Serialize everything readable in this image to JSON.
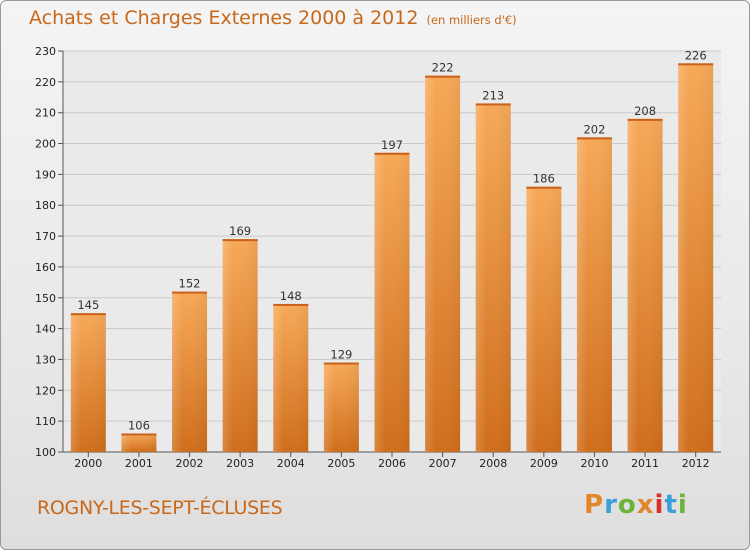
{
  "header": {
    "title": "Achats et Charges Externes 2000 à 2012",
    "unit": "(en milliers d'€)"
  },
  "footer": {
    "commune": "ROGNY-LES-SEPT-ÉCLUSES",
    "brand": "Proxiti"
  },
  "colors": {
    "title": "#c8681a",
    "bar_light": "#f5a552",
    "bar_dark": "#d9741e",
    "brand_letters": [
      "#e3862b",
      "#3aa0d8",
      "#6bb33a",
      "#e3862b",
      "#d8302b",
      "#3aa0d8",
      "#6bb33a"
    ]
  },
  "chart_data": {
    "type": "bar",
    "title": "Achats et Charges Externes 2000 à 2012",
    "subtitle": "(en milliers d'€)",
    "categories": [
      "2000",
      "2001",
      "2002",
      "2003",
      "2004",
      "2005",
      "2006",
      "2007",
      "2008",
      "2009",
      "2010",
      "2011",
      "2012"
    ],
    "values": [
      145,
      106,
      152,
      169,
      148,
      129,
      197,
      222,
      213,
      186,
      202,
      208,
      226
    ],
    "ylim": [
      100,
      230
    ],
    "yticks": [
      100,
      110,
      120,
      130,
      140,
      150,
      160,
      170,
      180,
      190,
      200,
      210,
      220,
      230
    ],
    "grid": true,
    "xlabel": "",
    "ylabel": ""
  }
}
